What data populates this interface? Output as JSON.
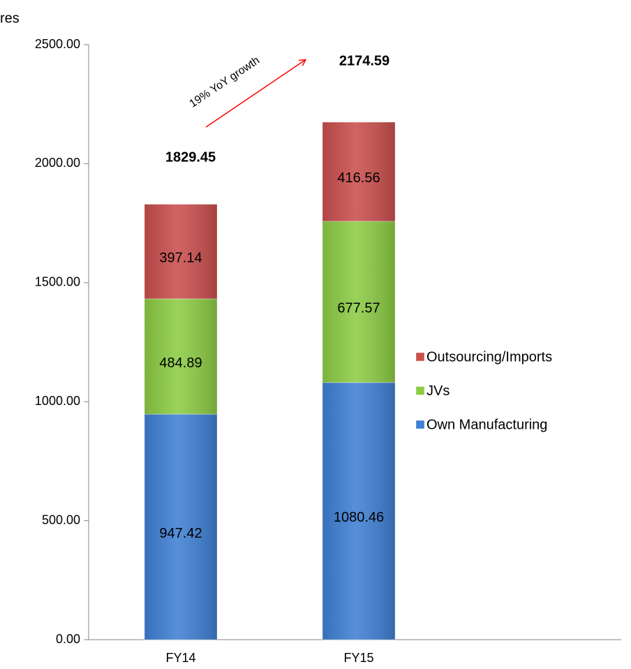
{
  "chart_data": {
    "type": "stacked_bar",
    "y_label": "res",
    "annotation": "19% YoY growth",
    "categories": [
      "FY14",
      "FY15"
    ],
    "series": [
      {
        "name": "Own Manufacturing",
        "color": "#3f7fd4",
        "values": [
          947.42,
          1080.46
        ]
      },
      {
        "name": "JVs",
        "color": "#8ccc44",
        "values": [
          484.89,
          677.57
        ]
      },
      {
        "name": "Outsourcing/Imports",
        "color": "#c94f4d",
        "values": [
          397.14,
          416.56
        ]
      }
    ],
    "totals": [
      1829.45,
      2174.59
    ],
    "ylim": [
      0,
      2500
    ],
    "yticks": [
      {
        "value": 0,
        "label": "0.00"
      },
      {
        "value": 500,
        "label": "500.00"
      },
      {
        "value": 1000,
        "label": "1000.00"
      },
      {
        "value": 1500,
        "label": "1500.00"
      },
      {
        "value": 2000,
        "label": "2000.00"
      },
      {
        "value": 2500,
        "label": "2500.00"
      }
    ],
    "legend": "right"
  }
}
